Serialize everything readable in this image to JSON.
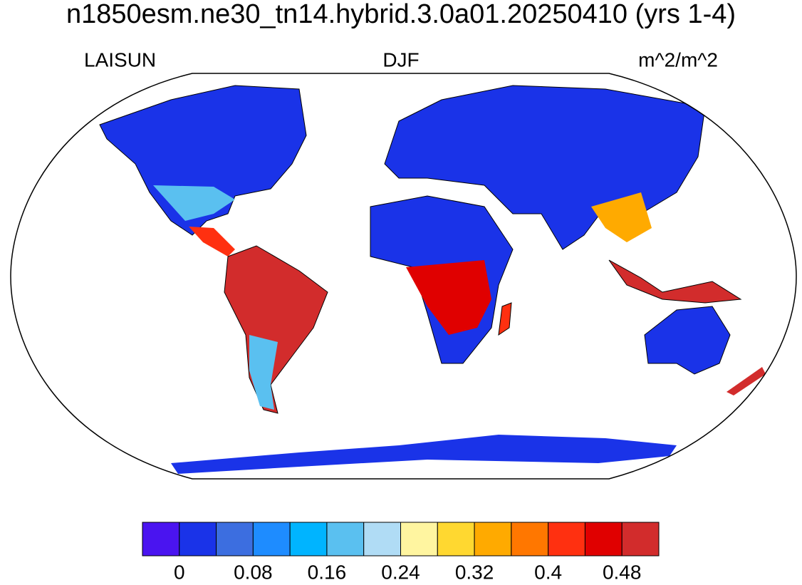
{
  "title": "n1850esm.ne30_tn14.hybrid.3.0a01.20250410 (yrs 1-4)",
  "left_string": "LAISUN",
  "center_string": "DJF",
  "right_string": "m^2/m^2",
  "colorbar": {
    "colors": [
      "#4a14f0",
      "#1a33e8",
      "#3c6ee0",
      "#1e8cff",
      "#00b4ff",
      "#5ac0f0",
      "#b0dcf5",
      "#fff5a0",
      "#ffd830",
      "#ffaa00",
      "#ff7700",
      "#ff3010",
      "#e00000",
      "#d22c2c"
    ],
    "ticks": [
      0,
      0.08,
      0.16,
      0.24,
      0.32,
      0.4,
      0.48
    ]
  }
}
